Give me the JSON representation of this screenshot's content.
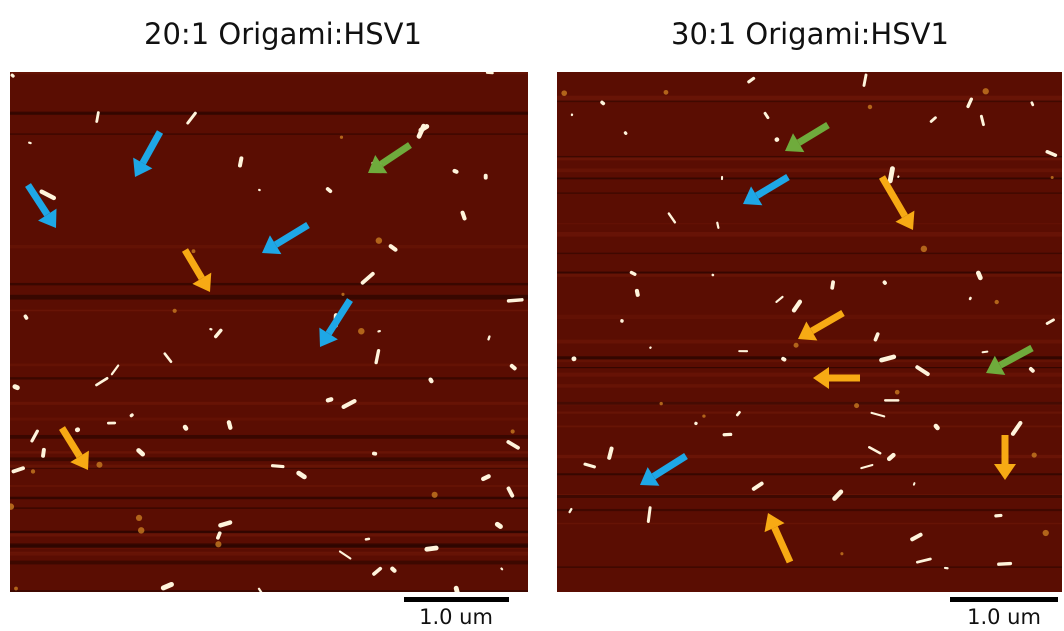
{
  "panels": [
    {
      "title": "20:1 Origami:HSV1",
      "scale_bar": "1.0 um"
    },
    {
      "title": "30:1 Origami:HSV1",
      "scale_bar": "1.0 um"
    }
  ]
}
